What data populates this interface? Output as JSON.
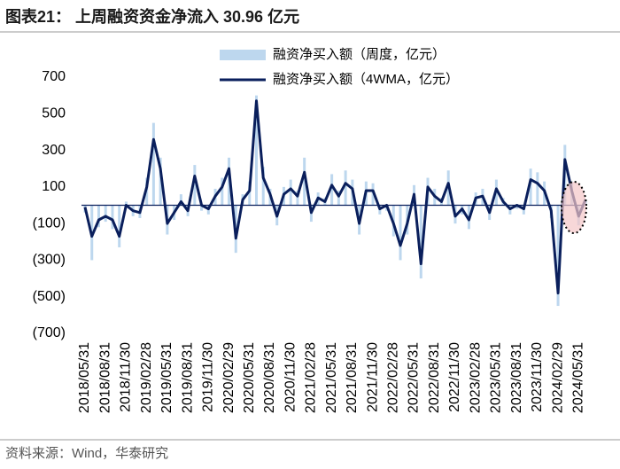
{
  "title": "图表21： 上周融资资金净流入 30.96 亿元",
  "source": "资料来源：Wind，华泰研究",
  "chart_data": {
    "type": "bar-line",
    "categories": [
      "2018/05/31",
      null,
      null,
      "2018/08/31",
      null,
      null,
      "2018/11/30",
      null,
      null,
      "2019/02/28",
      null,
      null,
      "2019/05/31",
      null,
      null,
      "2019/08/31",
      null,
      null,
      "2019/11/30",
      null,
      null,
      "2020/02/29",
      null,
      null,
      "2020/05/31",
      null,
      null,
      "2020/08/31",
      null,
      null,
      "2020/11/30",
      null,
      null,
      "2021/02/28",
      null,
      null,
      "2021/05/31",
      null,
      null,
      "2021/08/31",
      null,
      null,
      "2021/11/30",
      null,
      null,
      "2022/02/28",
      null,
      null,
      "2022/05/31",
      null,
      null,
      "2022/08/31",
      null,
      null,
      "2022/11/30",
      null,
      null,
      "2023/02/28",
      null,
      null,
      "2023/05/31",
      null,
      null,
      "2023/08/31",
      null,
      null,
      "2023/11/30",
      null,
      null,
      "2024/02/29",
      null,
      null,
      "2024/05/31",
      null
    ],
    "series": [
      {
        "name": "融资净买入额（周度，亿元）",
        "color": "#bdd7ee",
        "kind": "bar",
        "values": [
          -40,
          -300,
          -120,
          -90,
          -130,
          -230,
          20,
          -60,
          -70,
          150,
          450,
          260,
          -160,
          -80,
          60,
          -60,
          220,
          -30,
          -50,
          90,
          150,
          260,
          -260,
          60,
          130,
          600,
          210,
          90,
          -110,
          100,
          140,
          80,
          260,
          -90,
          70,
          40,
          170,
          80,
          190,
          140,
          -160,
          130,
          120,
          -50,
          -30,
          -170,
          -300,
          -160,
          110,
          -400,
          150,
          90,
          40,
          190,
          -100,
          -50,
          -130,
          70,
          90,
          -80,
          140,
          40,
          -50,
          -20,
          -50,
          200,
          180,
          130,
          -70,
          -550,
          330,
          130,
          -110,
          31
        ]
      },
      {
        "name": "融资净买入额（4WMA，亿元）",
        "color": "#0a1f5c",
        "kind": "line",
        "values": [
          -10,
          -170,
          -80,
          -60,
          -80,
          -170,
          0,
          -30,
          -40,
          100,
          360,
          200,
          -100,
          -40,
          20,
          -30,
          160,
          0,
          -20,
          50,
          100,
          200,
          -180,
          30,
          80,
          570,
          150,
          60,
          -60,
          60,
          90,
          50,
          180,
          -40,
          40,
          20,
          110,
          50,
          120,
          90,
          -100,
          80,
          80,
          -20,
          0,
          -100,
          -220,
          -100,
          60,
          -320,
          100,
          50,
          20,
          120,
          -60,
          -20,
          -80,
          40,
          50,
          -40,
          90,
          20,
          -20,
          0,
          -20,
          140,
          120,
          80,
          -30,
          -480,
          250,
          80,
          -60,
          31
        ]
      }
    ],
    "ylim": [
      -700,
      700
    ],
    "yticks": [
      {
        "value": -700,
        "label": "(700)"
      },
      {
        "value": -500,
        "label": "(500)"
      },
      {
        "value": -300,
        "label": "(300)"
      },
      {
        "value": -100,
        "label": "(100)"
      },
      100,
      300,
      500,
      700
    ]
  }
}
